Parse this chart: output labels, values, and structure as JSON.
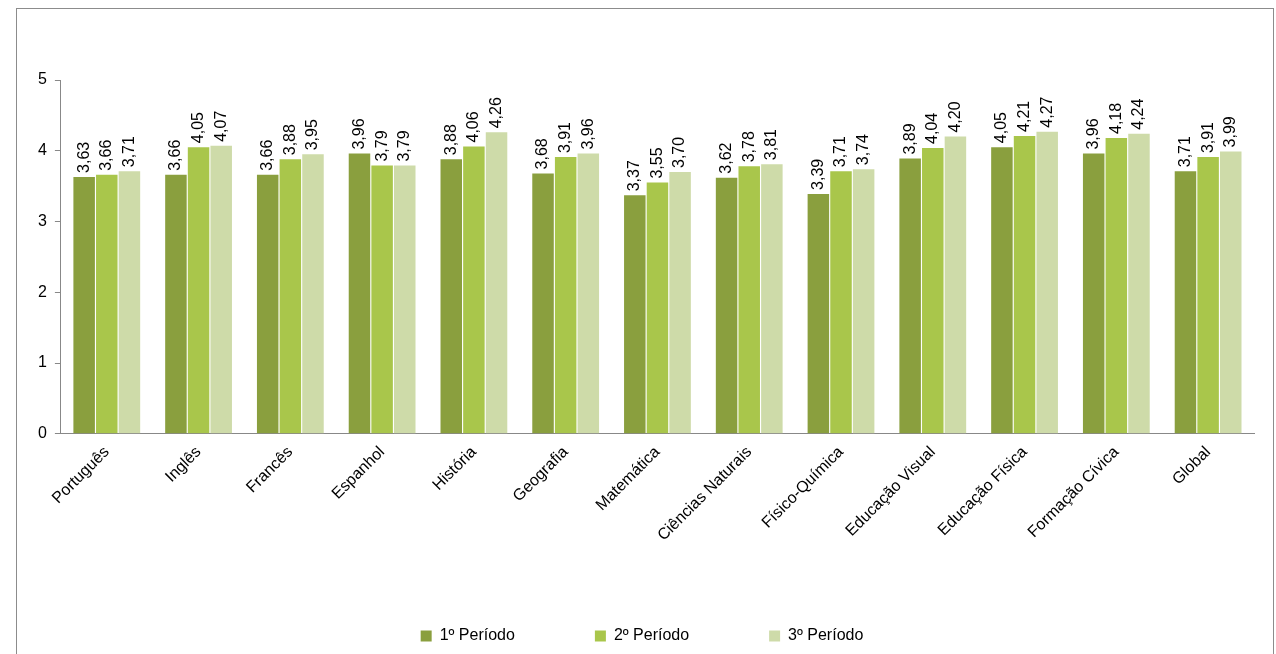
{
  "chart_data": {
    "type": "bar",
    "categories": [
      "Português",
      "Inglês",
      "Francês",
      "Espanhol",
      "História",
      "Geografia",
      "Matemática",
      "Ciências Naturais",
      "Físico-Química",
      "Educação Visual",
      "Educação Física",
      "Formação Cívica",
      "Global"
    ],
    "series": [
      {
        "name": "1º Período",
        "color": "#8a9f3e",
        "values": [
          3.63,
          3.66,
          3.66,
          3.96,
          3.88,
          3.68,
          3.37,
          3.62,
          3.39,
          3.89,
          4.05,
          3.96,
          3.71
        ],
        "value_labels": [
          "3,63",
          "3,66",
          "3,66",
          "3,96",
          "3,88",
          "3,68",
          "3,37",
          "3,62",
          "3,39",
          "3,89",
          "4,05",
          "3,96",
          "3,71"
        ]
      },
      {
        "name": "2º Período",
        "color": "#a9c64b",
        "values": [
          3.66,
          4.05,
          3.88,
          3.79,
          4.06,
          3.91,
          3.55,
          3.78,
          3.71,
          4.04,
          4.21,
          4.18,
          3.91
        ],
        "value_labels": [
          "3,66",
          "4,05",
          "3,88",
          "3,79",
          "4,06",
          "3,91",
          "3,55",
          "3,78",
          "3,71",
          "4,04",
          "4,21",
          "4,18",
          "3,91"
        ]
      },
      {
        "name": "3º Período",
        "color": "#cedba9",
        "values": [
          3.71,
          4.07,
          3.95,
          3.79,
          4.26,
          3.96,
          3.7,
          3.81,
          3.74,
          4.2,
          4.27,
          4.24,
          3.99
        ],
        "value_labels": [
          "3,71",
          "4,07",
          "3,95",
          "3,79",
          "4,26",
          "3,96",
          "3,70",
          "3,81",
          "3,74",
          "4,20",
          "4,27",
          "4,24",
          "3,99"
        ]
      }
    ],
    "ylim": [
      0,
      5
    ],
    "yticks": [
      0,
      1,
      2,
      3,
      4,
      5
    ],
    "grid": false,
    "legend": "bottom"
  }
}
